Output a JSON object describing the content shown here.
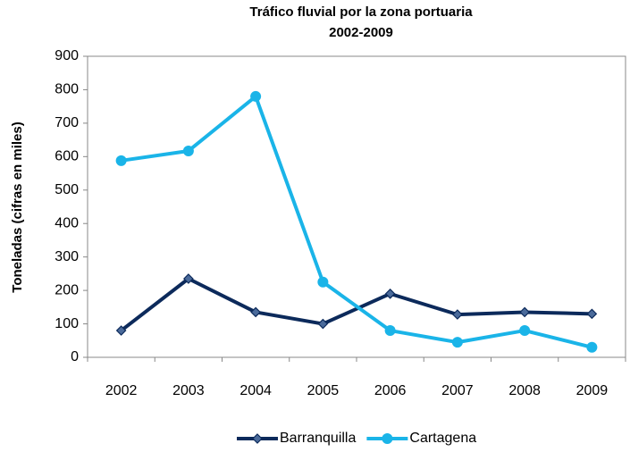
{
  "chart_data": {
    "type": "line",
    "title": "Tráfico fluvial por la zona portuaria",
    "subtitle": "2002-2009",
    "ylabel": "Toneladas  (cifras en miles)",
    "categories": [
      "2002",
      "2003",
      "2004",
      "2005",
      "2006",
      "2007",
      "2008",
      "2009"
    ],
    "series": [
      {
        "name": "Barranquilla",
        "color": "#0c2a5b",
        "marker": "diamond",
        "values": [
          80,
          235,
          135,
          100,
          190,
          128,
          135,
          130
        ]
      },
      {
        "name": "Cartagena",
        "color": "#1ab4e8",
        "marker": "circle",
        "values": [
          588,
          617,
          780,
          225,
          80,
          45,
          80,
          30
        ]
      }
    ],
    "ylim": [
      0,
      900
    ],
    "yticks": [
      0,
      100,
      200,
      300,
      400,
      500,
      600,
      700,
      800,
      900
    ],
    "legend": "bottom"
  }
}
